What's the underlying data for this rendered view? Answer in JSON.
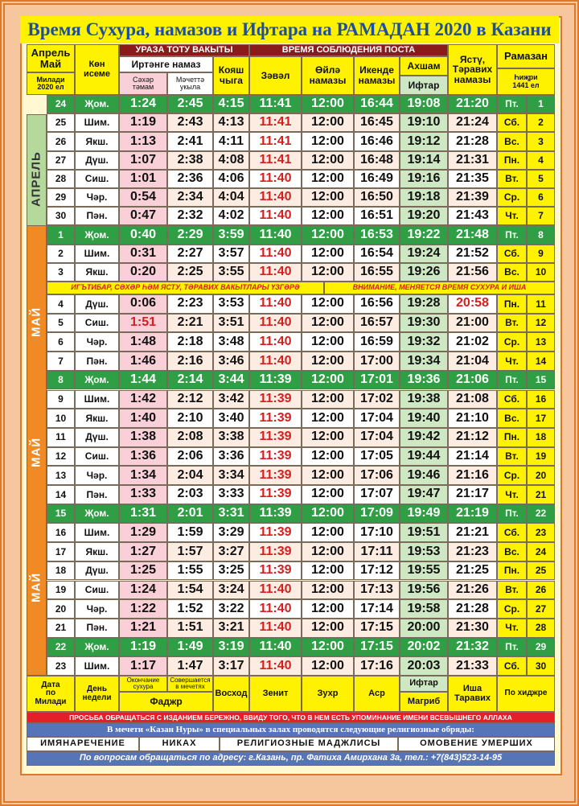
{
  "title": "Время Сухура, намазов и Ифтара на РАМАДАН 2020 в Казани",
  "header": {
    "date": "Апрель\nМай",
    "date_sub": "Милади\n2020 ел",
    "weekday": "Көн\nисеме",
    "fast_left": "УРАЗА ТОТУ ВАКЫТЫ",
    "fast_right": "ВРЕМЯ СОБЛЮДЕНИЯ ПОСТА",
    "morning": "Иртәнге намаз",
    "suhur": "Сәхәр\nтәмам",
    "fajr": "Мәчеттә\nукыла",
    "sunrise": "Кояш\nчыга",
    "zenith": "Зәвәл",
    "zuhr": "Өйлә\nнамазы",
    "asr": "Икенде\nнамазы",
    "maghrib": "Ахшам",
    "iftar": "Ифтар",
    "isha": "Ястү,\nТәравих\nнамазы",
    "ramadan": "Рамазан",
    "hijri": "Һиҗри\n1441 ел"
  },
  "months": [
    "АПРЕЛЬ",
    "МАЙ",
    "МАЙ",
    "МАЙ"
  ],
  "notice": [
    "ИГЪТИБАР, СӘХӘР ҺӘМ ЯСТУ, ТӘРАВИХ ВАКЫТЛАРЫ ҮЗГӘРӘ",
    "ВНИМАНИЕ, МЕНЯЕТСЯ ВРЕМЯ СУХУРА И ИША"
  ],
  "table": {
    "rows": [
      [
        "24",
        "Җом.",
        "1:24",
        "2:45",
        "4:15",
        "11:41",
        "12:00",
        "16:44",
        "19:08",
        "21:20",
        "Пт.",
        "1"
      ],
      [
        "25",
        "Шим.",
        "1:19",
        "2:43",
        "4:13",
        "11:41",
        "12:00",
        "16:45",
        "19:10",
        "21:24",
        "Сб.",
        "2"
      ],
      [
        "26",
        "Якш.",
        "1:13",
        "2:41",
        "4:11",
        "11:41",
        "12:00",
        "16:46",
        "19:12",
        "21:28",
        "Вс.",
        "3"
      ],
      [
        "27",
        "Дүш.",
        "1:07",
        "2:38",
        "4:08",
        "11:41",
        "12:00",
        "16:48",
        "19:14",
        "21:31",
        "Пн.",
        "4"
      ],
      [
        "28",
        "Сиш.",
        "1:01",
        "2:36",
        "4:06",
        "11:40",
        "12:00",
        "16:49",
        "19:16",
        "21:35",
        "Вт.",
        "5"
      ],
      [
        "29",
        "Чәр.",
        "0:54",
        "2:34",
        "4:04",
        "11:40",
        "12:00",
        "16:50",
        "19:18",
        "21:39",
        "Ср.",
        "6"
      ],
      [
        "30",
        "Пән.",
        "0:47",
        "2:32",
        "4:02",
        "11:40",
        "12:00",
        "16:51",
        "19:20",
        "21:43",
        "Чт.",
        "7"
      ],
      [
        "1",
        "Җом.",
        "0:40",
        "2:29",
        "3:59",
        "11:40",
        "12:00",
        "16:53",
        "19:22",
        "21:48",
        "Пт.",
        "8"
      ],
      [
        "2",
        "Шим.",
        "0:31",
        "2:27",
        "3:57",
        "11:40",
        "12:00",
        "16:54",
        "19:24",
        "21:52",
        "Сб.",
        "9"
      ],
      [
        "3",
        "Якш.",
        "0:20",
        "2:25",
        "3:55",
        "11:40",
        "12:00",
        "16:55",
        "19:26",
        "21:56",
        "Вс.",
        "10"
      ],
      [
        "4",
        "Дүш.",
        "0:06",
        "2:23",
        "3:53",
        "11:40",
        "12:00",
        "16:56",
        "19:28",
        "20:58",
        "Пн.",
        "11"
      ],
      [
        "5",
        "Сиш.",
        "1:51",
        "2:21",
        "3:51",
        "11:40",
        "12:00",
        "16:57",
        "19:30",
        "21:00",
        "Вт.",
        "12"
      ],
      [
        "6",
        "Чәр.",
        "1:48",
        "2:18",
        "3:48",
        "11:40",
        "12:00",
        "16:59",
        "19:32",
        "21:02",
        "Ср.",
        "13"
      ],
      [
        "7",
        "Пән.",
        "1:46",
        "2:16",
        "3:46",
        "11:40",
        "12:00",
        "17:00",
        "19:34",
        "21:04",
        "Чт.",
        "14"
      ],
      [
        "8",
        "Җом.",
        "1:44",
        "2:14",
        "3:44",
        "11:39",
        "12:00",
        "17:01",
        "19:36",
        "21:06",
        "Пт.",
        "15"
      ],
      [
        "9",
        "Шим.",
        "1:42",
        "2:12",
        "3:42",
        "11:39",
        "12:00",
        "17:02",
        "19:38",
        "21:08",
        "Сб.",
        "16"
      ],
      [
        "10",
        "Якш.",
        "1:40",
        "2:10",
        "3:40",
        "11:39",
        "12:00",
        "17:04",
        "19:40",
        "21:10",
        "Вс.",
        "17"
      ],
      [
        "11",
        "Дүш.",
        "1:38",
        "2:08",
        "3:38",
        "11:39",
        "12:00",
        "17:04",
        "19:42",
        "21:12",
        "Пн.",
        "18"
      ],
      [
        "12",
        "Сиш.",
        "1:36",
        "2:06",
        "3:36",
        "11:39",
        "12:00",
        "17:05",
        "19:44",
        "21:14",
        "Вт.",
        "19"
      ],
      [
        "13",
        "Чәр.",
        "1:34",
        "2:04",
        "3:34",
        "11:39",
        "12:00",
        "17:06",
        "19:46",
        "21:16",
        "Ср.",
        "20"
      ],
      [
        "14",
        "Пән.",
        "1:33",
        "2:03",
        "3:33",
        "11:39",
        "12:00",
        "17:07",
        "19:47",
        "21:17",
        "Чт.",
        "21"
      ],
      [
        "15",
        "Җом.",
        "1:31",
        "2:01",
        "3:31",
        "11:39",
        "12:00",
        "17:09",
        "19:49",
        "21:19",
        "Пт.",
        "22"
      ],
      [
        "16",
        "Шим.",
        "1:29",
        "1:59",
        "3:29",
        "11:39",
        "12:00",
        "17:10",
        "19:51",
        "21:21",
        "Сб.",
        "23"
      ],
      [
        "17",
        "Якш.",
        "1:27",
        "1:57",
        "3:27",
        "11:39",
        "12:00",
        "17:11",
        "19:53",
        "21:23",
        "Вс.",
        "24"
      ],
      [
        "18",
        "Дүш.",
        "1:25",
        "1:55",
        "3:25",
        "11:39",
        "12:00",
        "17:12",
        "19:55",
        "21:25",
        "Пн.",
        "25"
      ],
      [
        "19",
        "Сиш.",
        "1:24",
        "1:54",
        "3:24",
        "11:40",
        "12:00",
        "17:13",
        "19:56",
        "21:26",
        "Вт.",
        "26"
      ],
      [
        "20",
        "Чәр.",
        "1:22",
        "1:52",
        "3:22",
        "11:40",
        "12:00",
        "17:14",
        "19:58",
        "21:28",
        "Ср.",
        "27"
      ],
      [
        "21",
        "Пән.",
        "1:21",
        "1:51",
        "3:21",
        "11:40",
        "12:00",
        "17:15",
        "20:00",
        "21:30",
        "Чт.",
        "28"
      ],
      [
        "22",
        "Җом.",
        "1:19",
        "1:49",
        "3:19",
        "11:40",
        "12:00",
        "17:15",
        "20:02",
        "21:32",
        "Пт.",
        "29"
      ],
      [
        "23",
        "Шим.",
        "1:17",
        "1:47",
        "3:17",
        "11:40",
        "12:00",
        "17:16",
        "20:03",
        "21:33",
        "Сб.",
        "30"
      ]
    ]
  },
  "footer": {
    "date": "Дата\nпо\nМилади",
    "weekday": "День\nнедели",
    "suhur": "Окончание\nсухура",
    "fajr_mosque": "Совершается\nв мечетях",
    "fajr": "Фаджр",
    "sunrise": "Восход",
    "zenith": "Зенит",
    "zuhr": "Зухр",
    "asr": "Аср",
    "iftar": "Ифтар",
    "maghrib": "Магриб",
    "isha": "Иша\nТаравих",
    "hijri": "По хиджре"
  },
  "notes": {
    "warning": "ПРОСЬБА ОБРАЩАТЬСЯ С ИЗДАНИЕМ БЕРЕЖНО, ВВИДУ ТОГО, ЧТО В НЕМ ЕСТЬ УПОМИНАНИЕ ИМЕНИ ВСЕВЫШНЕГО АЛЛАХА",
    "rites_intro": "В мечети «Казан Нуры» в специальных залах проводятся следующие религиозные обряды:",
    "rites": [
      "ИМЯНАРЕЧЕНИЕ",
      "НИКАХ",
      "РЕЛИГИОЗНЫЕ МАДЖЛИСЫ",
      "ОМОВЕНИЕ УМЕРШИХ"
    ],
    "contact": "По вопросам обращаться по адресу: г.Казань, пр. Фатиха Амирхана 3а, тел.: +7(843)523-14-95"
  }
}
